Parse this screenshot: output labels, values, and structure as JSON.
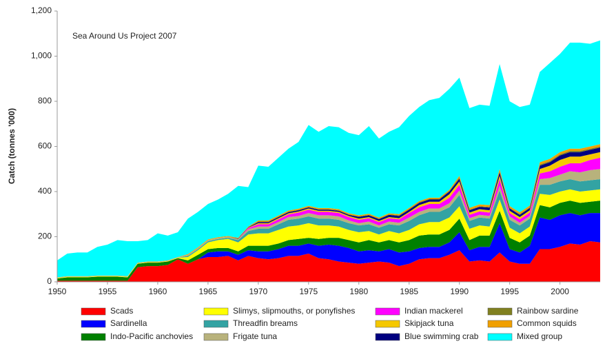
{
  "chart_data": {
    "type": "stacked_area",
    "annotation": "Sea Around Us Project 2007",
    "y_label": "Catch (tonnes '000)",
    "x": [
      1950,
      1951,
      1952,
      1953,
      1954,
      1955,
      1956,
      1957,
      1958,
      1959,
      1960,
      1961,
      1962,
      1963,
      1964,
      1965,
      1966,
      1967,
      1968,
      1969,
      1970,
      1971,
      1972,
      1973,
      1974,
      1975,
      1976,
      1977,
      1978,
      1979,
      1980,
      1981,
      1982,
      1983,
      1984,
      1985,
      1986,
      1987,
      1988,
      1989,
      1990,
      1991,
      1992,
      1993,
      1994,
      1995,
      1996,
      1997,
      1998,
      1999,
      2000,
      2001,
      2002,
      2003,
      2004
    ],
    "xlim": [
      1950,
      2004
    ],
    "xticks": [
      1950,
      1955,
      1960,
      1965,
      1970,
      1975,
      1980,
      1985,
      1990,
      1995,
      2000
    ],
    "ylim": [
      0,
      1200
    ],
    "yticks": [
      0,
      200,
      400,
      600,
      800,
      {
        "value": 1000,
        "label": "1,000"
      },
      {
        "value": 1200,
        "label": "1,200"
      }
    ],
    "grid": false,
    "legend": "bottom",
    "series": [
      {
        "name": "Scads",
        "color": "#ff0000",
        "values": [
          5,
          5,
          5,
          5,
          5,
          5,
          5,
          5,
          65,
          70,
          70,
          75,
          100,
          80,
          100,
          110,
          110,
          115,
          95,
          115,
          105,
          100,
          105,
          115,
          115,
          125,
          105,
          100,
          90,
          85,
          80,
          85,
          90,
          85,
          70,
          80,
          100,
          105,
          105,
          120,
          140,
          90,
          95,
          90,
          130,
          90,
          80,
          80,
          145,
          145,
          155,
          170,
          165,
          180,
          175
        ]
      },
      {
        "name": "Sardinella",
        "color": "#0000ff",
        "values": [
          0,
          0,
          0,
          0,
          0,
          0,
          0,
          0,
          0,
          0,
          0,
          0,
          0,
          0,
          0,
          20,
          25,
          20,
          25,
          25,
          30,
          35,
          40,
          45,
          45,
          45,
          55,
          65,
          70,
          65,
          55,
          55,
          45,
          60,
          60,
          55,
          50,
          50,
          50,
          55,
          80,
          50,
          60,
          65,
          130,
          55,
          50,
          80,
          140,
          130,
          140,
          135,
          130,
          125,
          130
        ]
      },
      {
        "name": "Indo-Pacific anchovies",
        "color": "#008000",
        "values": [
          10,
          15,
          15,
          15,
          18,
          18,
          18,
          15,
          15,
          15,
          15,
          15,
          5,
          15,
          20,
          15,
          15,
          15,
          15,
          20,
          25,
          25,
          25,
          25,
          30,
          25,
          30,
          30,
          35,
          35,
          40,
          45,
          40,
          40,
          45,
          50,
          55,
          55,
          55,
          55,
          60,
          45,
          50,
          50,
          55,
          50,
          45,
          45,
          55,
          55,
          55,
          55,
          55,
          50,
          55
        ]
      },
      {
        "name": "Slimys, slipmouths, or ponyfishes",
        "color": "#ffff00",
        "values": [
          2,
          2,
          2,
          2,
          2,
          2,
          2,
          2,
          2,
          2,
          2,
          2,
          2,
          15,
          20,
          30,
          35,
          40,
          40,
          50,
          55,
          55,
          60,
          60,
          60,
          65,
          60,
          55,
          50,
          45,
          45,
          40,
          35,
          40,
          40,
          45,
          50,
          55,
          55,
          55,
          55,
          50,
          45,
          40,
          50,
          45,
          40,
          40,
          50,
          55,
          50,
          50,
          50,
          50,
          50
        ]
      },
      {
        "name": "Threadfin breams",
        "color": "#33a3a3",
        "values": [
          0,
          0,
          0,
          0,
          0,
          0,
          0,
          0,
          0,
          0,
          0,
          0,
          0,
          5,
          5,
          5,
          5,
          5,
          10,
          15,
          20,
          20,
          25,
          30,
          30,
          30,
          30,
          30,
          30,
          30,
          30,
          30,
          30,
          30,
          35,
          40,
          40,
          45,
          45,
          45,
          50,
          35,
          35,
          35,
          40,
          35,
          35,
          35,
          40,
          45,
          45,
          45,
          45,
          45,
          45
        ]
      },
      {
        "name": "Frigate tuna",
        "color": "#b8b27c",
        "values": [
          2,
          2,
          2,
          2,
          2,
          2,
          2,
          2,
          2,
          2,
          2,
          2,
          2,
          5,
          5,
          5,
          5,
          5,
          5,
          8,
          10,
          10,
          10,
          12,
          12,
          15,
          15,
          15,
          15,
          12,
          10,
          12,
          10,
          12,
          12,
          15,
          15,
          15,
          15,
          18,
          20,
          12,
          12,
          12,
          20,
          15,
          12,
          12,
          25,
          30,
          30,
          35,
          40,
          45,
          45
        ]
      },
      {
        "name": "Indian mackerel",
        "color": "#ff00ff",
        "values": [
          0,
          0,
          0,
          0,
          0,
          0,
          0,
          0,
          0,
          0,
          0,
          0,
          0,
          0,
          0,
          0,
          0,
          0,
          0,
          5,
          10,
          10,
          12,
          12,
          15,
          15,
          15,
          15,
          15,
          15,
          15,
          15,
          15,
          15,
          15,
          20,
          20,
          20,
          20,
          25,
          25,
          15,
          15,
          15,
          30,
          15,
          15,
          15,
          25,
          30,
          35,
          35,
          40,
          45,
          50
        ]
      },
      {
        "name": "Skipjack tuna",
        "color": "#f5c800",
        "values": [
          0,
          0,
          0,
          0,
          0,
          0,
          0,
          0,
          0,
          0,
          0,
          0,
          0,
          0,
          0,
          0,
          0,
          0,
          0,
          2,
          5,
          5,
          5,
          5,
          5,
          5,
          5,
          5,
          5,
          5,
          5,
          5,
          5,
          5,
          5,
          5,
          10,
          10,
          10,
          15,
          15,
          10,
          10,
          10,
          15,
          10,
          10,
          10,
          20,
          25,
          30,
          30,
          30,
          25,
          25
        ]
      },
      {
        "name": "Blue swimming crab",
        "color": "#000080",
        "values": [
          0,
          0,
          0,
          0,
          0,
          0,
          0,
          0,
          0,
          0,
          0,
          0,
          0,
          0,
          0,
          0,
          0,
          0,
          2,
          2,
          5,
          5,
          5,
          5,
          5,
          5,
          5,
          5,
          5,
          5,
          8,
          8,
          8,
          10,
          10,
          10,
          10,
          10,
          10,
          12,
          12,
          10,
          10,
          12,
          15,
          10,
          10,
          10,
          15,
          15,
          20,
          20,
          20,
          20,
          20
        ]
      },
      {
        "name": "Rainbow sardine",
        "color": "#808020",
        "values": [
          0,
          0,
          0,
          0,
          0,
          0,
          0,
          0,
          0,
          0,
          0,
          0,
          0,
          0,
          0,
          0,
          0,
          0,
          0,
          0,
          2,
          2,
          2,
          2,
          2,
          2,
          2,
          2,
          2,
          2,
          2,
          2,
          2,
          2,
          3,
          3,
          3,
          3,
          3,
          3,
          5,
          3,
          3,
          3,
          5,
          3,
          3,
          3,
          5,
          5,
          5,
          5,
          5,
          5,
          5
        ]
      },
      {
        "name": "Common squids",
        "color": "#f0a000",
        "values": [
          1,
          1,
          1,
          1,
          1,
          1,
          1,
          1,
          1,
          1,
          1,
          1,
          1,
          3,
          3,
          3,
          3,
          3,
          3,
          3,
          5,
          5,
          5,
          5,
          5,
          5,
          5,
          5,
          5,
          5,
          5,
          5,
          5,
          5,
          5,
          5,
          5,
          5,
          5,
          5,
          8,
          8,
          8,
          8,
          10,
          8,
          8,
          8,
          10,
          10,
          10,
          10,
          10,
          10,
          10
        ]
      },
      {
        "name": "Mixed group",
        "color": "#00ffff",
        "values": [
          75,
          100,
          105,
          105,
          127,
          137,
          157,
          155,
          95,
          95,
          125,
          110,
          110,
          157,
          157,
          157,
          167,
          187,
          230,
          175,
          243,
          238,
          256,
          274,
          296,
          358,
          338,
          363,
          363,
          356,
          355,
          388,
          350,
          361,
          385,
          407,
          417,
          432,
          442,
          447,
          435,
          442,
          442,
          440,
          465,
          464,
          467,
          447,
          400,
          425,
          435,
          470,
          470,
          455,
          460
        ]
      }
    ]
  }
}
